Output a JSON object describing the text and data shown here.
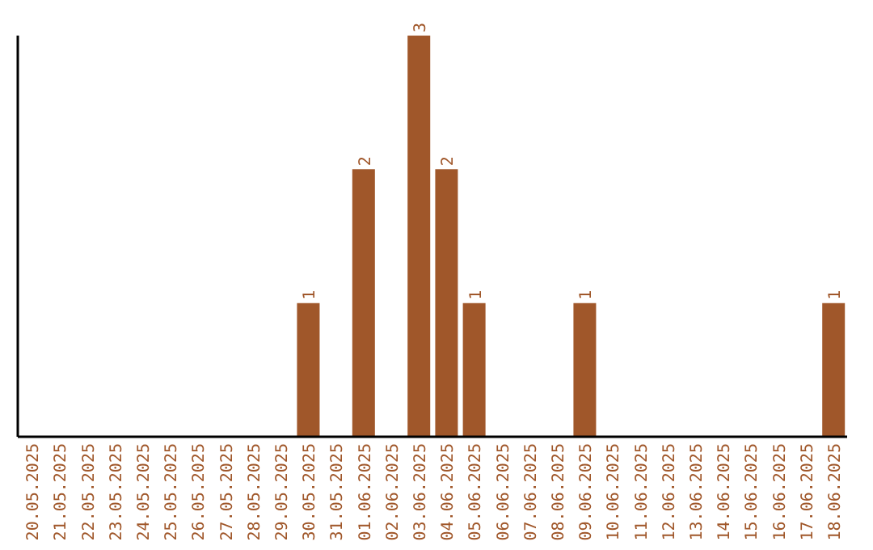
{
  "chart_data": {
    "type": "bar",
    "categories": [
      "20.05.2025",
      "21.05.2025",
      "22.05.2025",
      "23.05.2025",
      "24.05.2025",
      "25.05.2025",
      "26.05.2025",
      "27.05.2025",
      "28.05.2025",
      "29.05.2025",
      "30.05.2025",
      "31.05.2025",
      "01.06.2025",
      "02.06.2025",
      "03.06.2025",
      "04.06.2025",
      "05.06.2025",
      "06.06.2025",
      "07.06.2025",
      "08.06.2025",
      "09.06.2025",
      "10.06.2025",
      "11.06.2025",
      "12.06.2025",
      "13.06.2025",
      "14.06.2025",
      "15.06.2025",
      "16.06.2025",
      "17.06.2025",
      "18.06.2025"
    ],
    "values": [
      0,
      0,
      0,
      0,
      0,
      0,
      0,
      0,
      0,
      0,
      1,
      0,
      2,
      0,
      3,
      2,
      1,
      0,
      0,
      0,
      1,
      0,
      0,
      0,
      0,
      0,
      0,
      0,
      0,
      1
    ],
    "value_labels": [
      null,
      null,
      null,
      null,
      null,
      null,
      null,
      null,
      null,
      null,
      "1",
      null,
      "2",
      null,
      "3",
      "2",
      "1",
      null,
      null,
      null,
      "1",
      null,
      null,
      null,
      null,
      null,
      null,
      null,
      null,
      "1"
    ],
    "color": "#a0572a",
    "grid": false,
    "legend": false
  }
}
